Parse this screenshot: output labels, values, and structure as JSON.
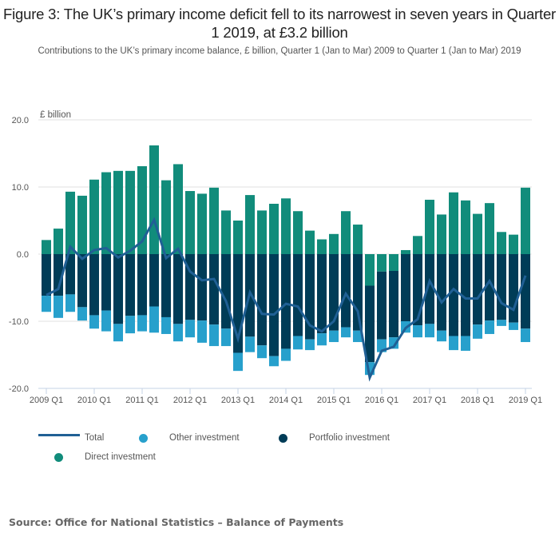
{
  "header": {
    "title": "Figure 3: The UK’s primary income deficit fell to its narrowest in seven years in Quarter 1 2019, at £3.2 billion",
    "subtitle": "Contributions to the UK’s primary income balance, £ billion, Quarter 1 (Jan to Mar) 2009 to Quarter 1 (Jan to Mar) 2019"
  },
  "colors": {
    "direct": "#118c7b",
    "portfolio": "#003c57",
    "other": "#27a0cc",
    "total": "#206095",
    "grid": "#e2e2e2",
    "axis": "#c6d3e6"
  },
  "legend": {
    "total": "Total",
    "other": "Other investment",
    "portfolio": "Portfolio investment",
    "direct": "Direct investment"
  },
  "source": "Source: Office for National Statistics – Balance of Payments",
  "chart_data": {
    "type": "bar",
    "stacked": true,
    "title": "Figure 3: The UK’s primary income deficit fell to its narrowest in seven years in Quarter 1 2019, at £3.2 billion",
    "subtitle": "Contributions to the UK’s primary income balance, £ billion, Quarter 1 (Jan to Mar) 2009 to Quarter 1 (Jan to Mar) 2019",
    "ylabel": "£ billion",
    "xlabel": "",
    "ylim": [
      -20,
      20
    ],
    "yticks": [
      20,
      10,
      0,
      -10,
      -20
    ],
    "ytick_labels": [
      "20.0",
      "10.0",
      "0.0",
      "-10.0",
      "-20.0"
    ],
    "grid": true,
    "legend_position": "bottom",
    "categories": [
      "2009 Q1",
      "2009 Q2",
      "2009 Q3",
      "2009 Q4",
      "2010 Q1",
      "2010 Q2",
      "2010 Q3",
      "2010 Q4",
      "2011 Q1",
      "2011 Q2",
      "2011 Q3",
      "2011 Q4",
      "2012 Q1",
      "2012 Q2",
      "2012 Q3",
      "2012 Q4",
      "2013 Q1",
      "2013 Q2",
      "2013 Q3",
      "2013 Q4",
      "2014 Q1",
      "2014 Q2",
      "2014 Q3",
      "2014 Q4",
      "2015 Q1",
      "2015 Q2",
      "2015 Q3",
      "2015 Q4",
      "2016 Q1",
      "2016 Q2",
      "2016 Q3",
      "2016 Q4",
      "2017 Q1",
      "2017 Q2",
      "2017 Q3",
      "2017 Q4",
      "2018 Q1",
      "2018 Q2",
      "2018 Q3",
      "2018 Q4",
      "2019 Q1"
    ],
    "xtick_labels": [
      "2009 Q1",
      "2010 Q1",
      "2011 Q1",
      "2012 Q1",
      "2013 Q1",
      "2014 Q1",
      "2015 Q1",
      "2016 Q1",
      "2017 Q1",
      "2018 Q1",
      "2019 Q1"
    ],
    "series": [
      {
        "name": "Direct investment",
        "kind": "bar",
        "values": [
          2.1,
          3.8,
          9.3,
          8.7,
          11.1,
          12.2,
          12.4,
          12.4,
          13.1,
          16.2,
          11.0,
          13.4,
          9.4,
          9.0,
          9.9,
          6.5,
          5.0,
          8.8,
          6.5,
          7.5,
          8.3,
          6.4,
          3.5,
          2.2,
          3.0,
          6.4,
          4.4,
          -4.7,
          -2.6,
          -2.5,
          0.6,
          2.7,
          8.1,
          5.9,
          9.2,
          8.0,
          6.0,
          7.6,
          3.3,
          2.9,
          9.9
        ]
      },
      {
        "name": "Portfolio investment",
        "kind": "bar",
        "values": [
          -6.2,
          -6.2,
          -6.0,
          -7.9,
          -9.1,
          -8.4,
          -10.4,
          -9.2,
          -9.1,
          -7.8,
          -9.4,
          -10.4,
          -9.8,
          -9.9,
          -10.5,
          -11.1,
          -14.7,
          -12.3,
          -13.6,
          -15.2,
          -14.1,
          -12.2,
          -12.7,
          -11.8,
          -11.4,
          -10.9,
          -11.4,
          -11.4,
          -10.1,
          -9.9,
          -10.0,
          -10.6,
          -10.4,
          -11.4,
          -12.2,
          -12.2,
          -10.5,
          -9.9,
          -9.8,
          -10.2,
          -11.1
        ]
      },
      {
        "name": "Other investment",
        "kind": "bar",
        "values": [
          -2.4,
          -3.3,
          -2.6,
          -2.0,
          -2.0,
          -3.1,
          -2.6,
          -2.6,
          -2.4,
          -3.9,
          -2.5,
          -2.6,
          -2.6,
          -3.3,
          -3.2,
          -2.6,
          -2.7,
          -2.3,
          -1.9,
          -1.5,
          -1.8,
          -2.0,
          -1.6,
          -1.8,
          -1.7,
          -1.5,
          -1.7,
          -1.9,
          -1.9,
          -1.7,
          -1.7,
          -1.8,
          -2.0,
          -1.6,
          -2.1,
          -2.2,
          -2.1,
          -2.0,
          -0.9,
          -1.1,
          -2.0
        ]
      },
      {
        "name": "Total",
        "kind": "line",
        "values": [
          -6.1,
          -5.2,
          1.1,
          -0.7,
          0.6,
          0.9,
          -0.5,
          0.5,
          1.9,
          5.1,
          -0.6,
          0.8,
          -2.6,
          -3.9,
          -3.7,
          -7.0,
          -12.6,
          -5.7,
          -8.9,
          -9.0,
          -7.4,
          -7.8,
          -10.6,
          -11.5,
          -10.0,
          -5.9,
          -8.5,
          -18.4,
          -14.4,
          -13.8,
          -11.0,
          -9.7,
          -4.0,
          -7.2,
          -5.2,
          -6.6,
          -6.6,
          -4.0,
          -7.3,
          -8.3,
          -3.2
        ]
      }
    ]
  }
}
